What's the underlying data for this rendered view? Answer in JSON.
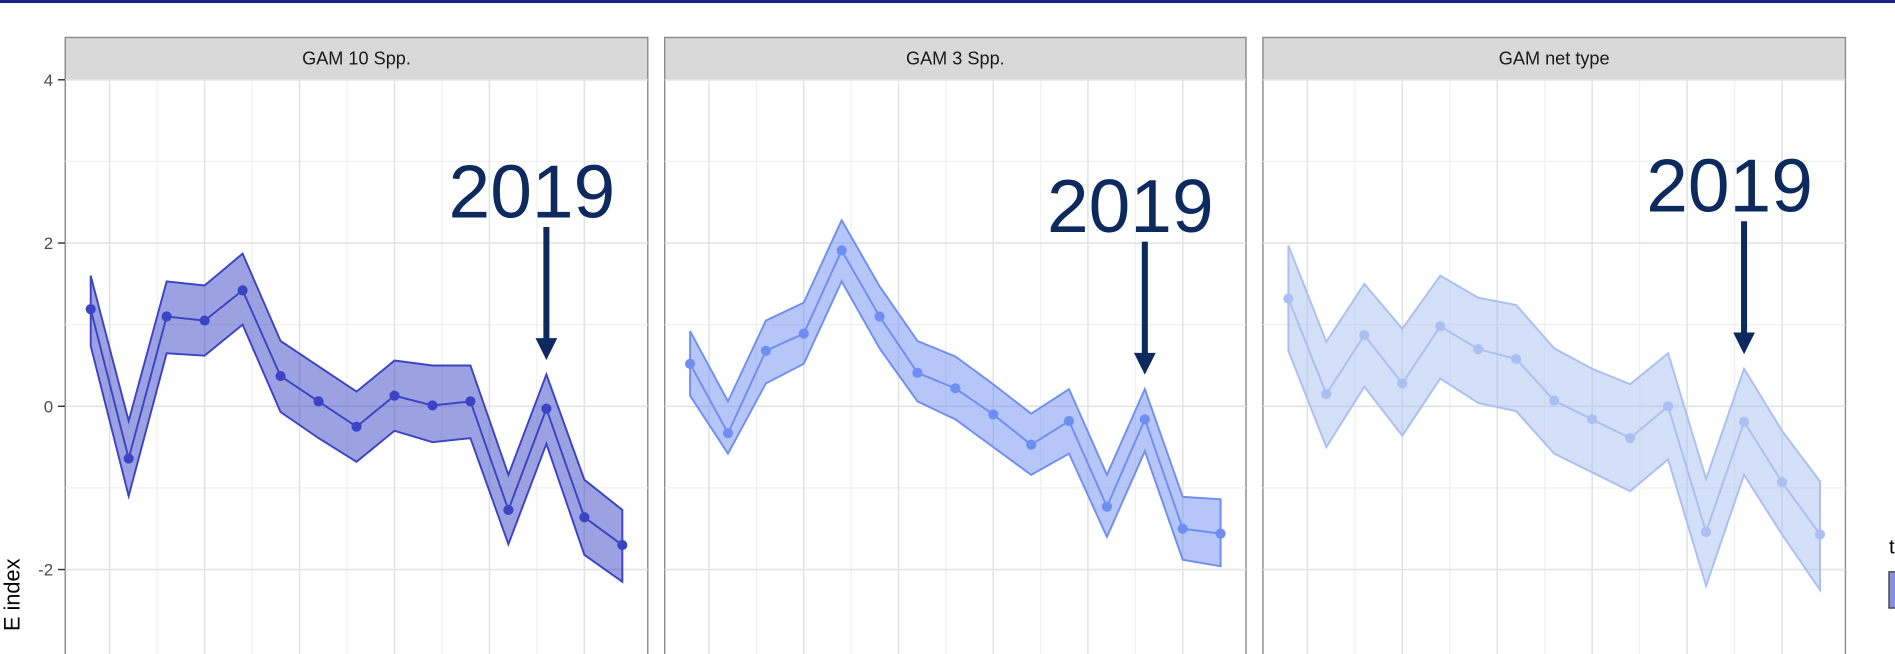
{
  "chart_data": [
    {
      "type": "line",
      "title": "GAM 10 Spp.",
      "x": [
        2007,
        2008,
        2009,
        2010,
        2011,
        2012,
        2013,
        2014,
        2015,
        2016,
        2017,
        2018,
        2019,
        2020,
        2021
      ],
      "xlim": [
        2006.33,
        2021.67
      ],
      "xticks": [
        2007.5,
        2010,
        2012.5,
        2015,
        2017.5,
        2020
      ],
      "ylim": [
        -3.02,
        4
      ],
      "yticks": [
        -2,
        0,
        2,
        4
      ],
      "grid": true,
      "y_label": "E index",
      "series": [
        {
          "color": "#3a44c4",
          "values": [
            1.19,
            -0.64,
            1.1,
            1.05,
            1.42,
            0.37,
            0.06,
            -0.25,
            0.13,
            0.01,
            0.06,
            -1.27,
            -0.03,
            -1.36,
            -1.7
          ],
          "upper": [
            1.6,
            -0.18,
            1.53,
            1.48,
            1.87,
            0.8,
            0.49,
            0.18,
            0.56,
            0.5,
            0.5,
            -0.84,
            0.39,
            -0.9,
            -1.27
          ],
          "lower": [
            0.74,
            -1.1,
            0.65,
            0.62,
            1.0,
            -0.07,
            -0.39,
            -0.68,
            -0.3,
            -0.44,
            -0.39,
            -1.69,
            -0.46,
            -1.82,
            -2.15
          ]
        }
      ],
      "annotations": [
        {
          "text": "2019",
          "x": 2019
        }
      ]
    },
    {
      "type": "line",
      "title": "GAM 3 Spp.",
      "x": [
        2007,
        2008,
        2009,
        2010,
        2011,
        2012,
        2013,
        2014,
        2015,
        2016,
        2017,
        2018,
        2019,
        2020,
        2021
      ],
      "xlim": [
        2006.33,
        2021.67
      ],
      "xticks": [
        2007.5,
        2010,
        2012.5,
        2015,
        2017.5,
        2020
      ],
      "ylim": [
        -3.02,
        4
      ],
      "yticks": [
        -2,
        0,
        2,
        4
      ],
      "grid": true,
      "series": [
        {
          "color": "#6f8ef2",
          "values": [
            0.52,
            -0.33,
            0.68,
            0.89,
            1.91,
            1.1,
            0.41,
            0.22,
            -0.1,
            -0.47,
            -0.18,
            -1.23,
            -0.16,
            -1.5,
            -1.56
          ],
          "upper": [
            0.92,
            0.06,
            1.05,
            1.27,
            2.28,
            1.47,
            0.8,
            0.61,
            0.27,
            -0.09,
            0.21,
            -0.84,
            0.21,
            -1.11,
            -1.14
          ],
          "lower": [
            0.13,
            -0.58,
            0.28,
            0.52,
            1.53,
            0.71,
            0.06,
            -0.16,
            -0.5,
            -0.84,
            -0.58,
            -1.6,
            -0.55,
            -1.88,
            -1.96
          ]
        }
      ],
      "annotations": [
        {
          "text": "2019",
          "x": 2019
        }
      ]
    },
    {
      "type": "line",
      "title": "GAM net type",
      "x": [
        2007,
        2008,
        2009,
        2010,
        2011,
        2012,
        2013,
        2014,
        2015,
        2016,
        2017,
        2018,
        2019,
        2020,
        2021
      ],
      "xlim": [
        2006.33,
        2021.67
      ],
      "xticks": [
        2007.5,
        2010,
        2012.5,
        2015,
        2017.5,
        2020
      ],
      "ylim": [
        -3.02,
        4
      ],
      "yticks": [
        -2,
        0,
        2,
        4
      ],
      "grid": true,
      "legend_title": "t",
      "series": [
        {
          "color": "#aabff2",
          "values": [
            1.32,
            0.15,
            0.87,
            0.28,
            0.98,
            0.7,
            0.58,
            0.07,
            -0.16,
            -0.39,
            0,
            -1.54,
            -0.19,
            -0.93,
            -1.57
          ],
          "upper": [
            1.97,
            0.79,
            1.5,
            0.95,
            1.6,
            1.33,
            1.24,
            0.71,
            0.46,
            0.27,
            0.65,
            -0.89,
            0.46,
            -0.3,
            -0.92
          ],
          "lower": [
            0.68,
            -0.5,
            0.24,
            -0.36,
            0.34,
            0.04,
            -0.06,
            -0.58,
            -0.81,
            -1.04,
            -0.65,
            -2.2,
            -0.84,
            -1.57,
            -2.25
          ]
        }
      ],
      "annotations": [
        {
          "text": "2019",
          "x": 2019
        }
      ]
    }
  ]
}
